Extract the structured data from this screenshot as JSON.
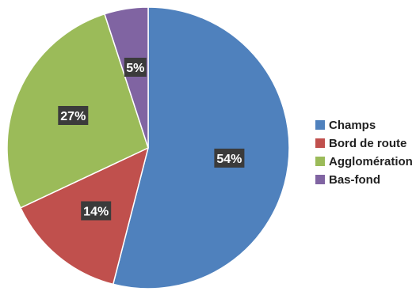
{
  "chart_data": {
    "type": "pie",
    "title": "",
    "categories": [
      "Champs",
      "Bord de route",
      "Agglomération",
      "Bas-fond"
    ],
    "values": [
      54,
      14,
      27,
      5
    ],
    "value_labels": [
      "54%",
      "14%",
      "27%",
      "5%"
    ],
    "colors": [
      "#4F81BD",
      "#C0504D",
      "#9BBB59",
      "#8064A2"
    ],
    "start_angle_deg": 0,
    "direction": "clockwise",
    "legend": {
      "position": "right",
      "entries": [
        "Champs",
        "Bord de route",
        "Agglomération",
        "Bas-fond"
      ]
    }
  }
}
